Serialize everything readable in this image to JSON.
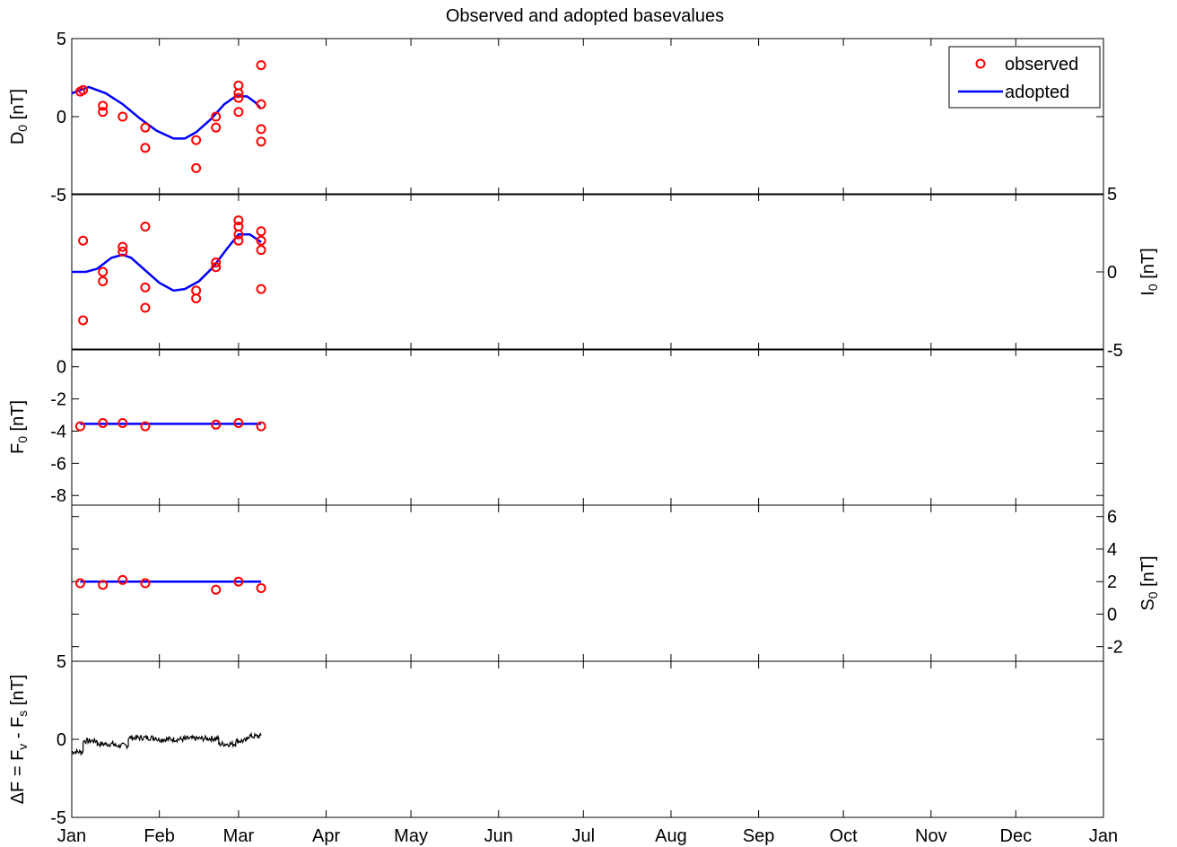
{
  "chart_data": {
    "type": "scatter",
    "title": "Observed and adopted basevalues",
    "month_labels": [
      "Jan",
      "Feb",
      "Mar",
      "Apr",
      "May",
      "Jun",
      "Jul",
      "Aug",
      "Sep",
      "Oct",
      "Nov",
      "Dec",
      "Jan"
    ],
    "xlim": [
      0,
      365
    ],
    "legend": {
      "placement": "top-right",
      "entries": [
        "observed",
        "adopted"
      ]
    },
    "colors": {
      "observed": "#ff0000",
      "adopted": "#0000ff",
      "delta": "#000000"
    },
    "panels": [
      {
        "id": "D0",
        "ylabel": {
          "main": "D",
          "sub": "0",
          "suffix": " [nT]"
        },
        "yaxis": "left",
        "ylim": [
          -5,
          5
        ],
        "ticks": [
          -5,
          0,
          5
        ],
        "tick_labels": [
          "-5",
          "0",
          "5"
        ],
        "observed": [
          [
            3,
            1.6
          ],
          [
            4,
            1.7
          ],
          [
            11,
            0.7
          ],
          [
            11,
            0.3
          ],
          [
            18,
            0
          ],
          [
            26,
            -0.7
          ],
          [
            26,
            -2
          ],
          [
            44,
            -1.5
          ],
          [
            44,
            -3.3
          ],
          [
            51,
            -0.7
          ],
          [
            51,
            0
          ],
          [
            59,
            0.3
          ],
          [
            59,
            1.2
          ],
          [
            59,
            1.5
          ],
          [
            59,
            2
          ],
          [
            67,
            3.3
          ],
          [
            67,
            0.8
          ],
          [
            67,
            -0.8
          ],
          [
            67,
            -1.6
          ]
        ],
        "adopted": [
          [
            0,
            1.5
          ],
          [
            6,
            1.9
          ],
          [
            12,
            1.5
          ],
          [
            18,
            0.8
          ],
          [
            24,
            -0.1
          ],
          [
            30,
            -0.9
          ],
          [
            36,
            -1.4
          ],
          [
            40,
            -1.4
          ],
          [
            44,
            -1.0
          ],
          [
            49,
            -0.2
          ],
          [
            54,
            0.8
          ],
          [
            58,
            1.3
          ],
          [
            62,
            1.3
          ],
          [
            65,
            0.9
          ],
          [
            67,
            0.5
          ]
        ]
      },
      {
        "id": "I0",
        "ylabel": {
          "main": "I",
          "sub": "0",
          "suffix": " [nT]"
        },
        "yaxis": "right",
        "ylim": [
          -5,
          5
        ],
        "ticks": [
          -5,
          0,
          5
        ],
        "tick_labels": [
          "-5",
          "0",
          "5"
        ],
        "observed": [
          [
            4,
            2
          ],
          [
            4,
            -3.1
          ],
          [
            11,
            0
          ],
          [
            11,
            -0.6
          ],
          [
            18,
            1.6
          ],
          [
            18,
            1.3
          ],
          [
            26,
            2.9
          ],
          [
            26,
            -1
          ],
          [
            26,
            -2.3
          ],
          [
            44,
            -1.2
          ],
          [
            44,
            -1.7
          ],
          [
            51,
            0.6
          ],
          [
            51,
            0.3
          ],
          [
            59,
            3.3
          ],
          [
            59,
            2.9
          ],
          [
            59,
            2.4
          ],
          [
            59,
            2
          ],
          [
            67,
            2.6
          ],
          [
            67,
            2
          ],
          [
            67,
            1.4
          ],
          [
            67,
            -1.1
          ]
        ],
        "adopted": [
          [
            0,
            0
          ],
          [
            5,
            0
          ],
          [
            9,
            0.2
          ],
          [
            14,
            0.9
          ],
          [
            18,
            1.1
          ],
          [
            21,
            0.9
          ],
          [
            26,
            0.1
          ],
          [
            31,
            -0.7
          ],
          [
            36,
            -1.2
          ],
          [
            40,
            -1.1
          ],
          [
            45,
            -0.6
          ],
          [
            50,
            0.3
          ],
          [
            55,
            1.5
          ],
          [
            59,
            2.4
          ],
          [
            63,
            2.4
          ],
          [
            67,
            1.9
          ]
        ]
      },
      {
        "id": "F0",
        "ylabel": {
          "main": "F",
          "sub": "0",
          "suffix": " [nT]"
        },
        "yaxis": "left",
        "ylim": [
          -8.6,
          1.1
        ],
        "ticks": [
          -8,
          -6,
          -4,
          -2,
          0
        ],
        "tick_labels": [
          "-8",
          "-6",
          "-4",
          "-2",
          "0"
        ],
        "observed": [
          [
            3,
            -3.7
          ],
          [
            11,
            -3.5
          ],
          [
            18,
            -3.5
          ],
          [
            26,
            -3.7
          ],
          [
            51,
            -3.6
          ],
          [
            59,
            -3.5
          ],
          [
            67,
            -3.7
          ]
        ],
        "adopted": [
          [
            3,
            -3.55
          ],
          [
            67,
            -3.55
          ]
        ]
      },
      {
        "id": "S0",
        "ylabel": {
          "main": "S",
          "sub": "0",
          "suffix": " [nT]"
        },
        "yaxis": "right",
        "ylim": [
          -2.9,
          6.7
        ],
        "ticks": [
          -2,
          0,
          2,
          4,
          6
        ],
        "tick_labels": [
          "-2",
          "0",
          "2",
          "4",
          "6"
        ],
        "observed": [
          [
            3,
            1.9
          ],
          [
            11,
            1.8
          ],
          [
            18,
            2.1
          ],
          [
            26,
            1.9
          ],
          [
            51,
            1.5
          ],
          [
            59,
            2
          ],
          [
            67,
            1.6
          ]
        ],
        "adopted": [
          [
            3,
            2
          ],
          [
            67,
            2
          ]
        ]
      },
      {
        "id": "dF",
        "ylabel": {
          "main": "ΔF = F",
          "sub": "v",
          "mid": " - F",
          "sub2": "s",
          "suffix": " [nT]"
        },
        "yaxis": "left",
        "ylim": [
          -5,
          5
        ],
        "ticks": [
          -5,
          0,
          5
        ],
        "tick_labels": [
          "-5",
          "0",
          "5"
        ],
        "segments": [
          {
            "x": [
              0,
              4
            ],
            "y": -0.8
          },
          {
            "x": 4,
            "y": -0.1
          },
          {
            "x": [
              4,
              9
            ],
            "y": -0.1
          },
          {
            "x": [
              9,
              15
            ],
            "y": -0.3
          },
          {
            "x": [
              15,
              20
            ],
            "y": -0.4
          },
          {
            "x": [
              20,
              30
            ],
            "y": 0.1
          },
          {
            "x": [
              30,
              40
            ],
            "y": 0
          },
          {
            "x": [
              40,
              52
            ],
            "y": 0.05
          },
          {
            "x": [
              52,
              58
            ],
            "y": -0.3
          },
          {
            "x": [
              58,
              62
            ],
            "y": -0.1
          },
          {
            "x": [
              62,
              67
            ],
            "y": 0.2
          }
        ]
      }
    ]
  }
}
